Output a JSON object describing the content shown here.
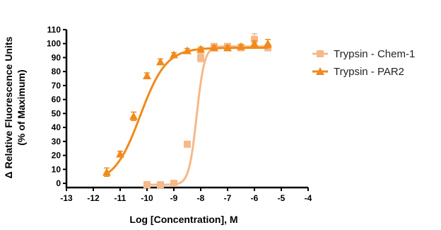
{
  "chart_data": {
    "type": "line",
    "xlabel": "Log [Concentration], M",
    "ylabel_line1": "Δ Relative Fluorescence Units",
    "ylabel_line2": "(% of Maximum)",
    "xlim": [
      -13,
      -4
    ],
    "ylim": [
      -3,
      115
    ],
    "x_ticks": [
      -13,
      -12,
      -11,
      -10,
      -9,
      -8,
      -7,
      -6,
      -5,
      -4
    ],
    "x_tick_labels": [
      "-13",
      "-12",
      "-11",
      "-10",
      "-9",
      "-8",
      "-7",
      "-6",
      "-5",
      "-4"
    ],
    "y_ticks": [
      0,
      10,
      20,
      30,
      40,
      50,
      60,
      70,
      80,
      90,
      100,
      110
    ],
    "y_tick_labels": [
      "0",
      "10",
      "20",
      "30",
      "40",
      "50",
      "60",
      "70",
      "80",
      "90",
      "100",
      "110"
    ],
    "grid": false,
    "legend_position": "right",
    "series": [
      {
        "name": "Trypsin - Chem-1",
        "color": "#f5b98a",
        "marker": "square",
        "x": [
          -10.0,
          -9.5,
          -9.0,
          -8.5,
          -8.0,
          -7.5,
          -7.0,
          -6.5,
          -6.0,
          -5.5
        ],
        "y": [
          -1,
          -1,
          0,
          28,
          90,
          98,
          98,
          97,
          103,
          97
        ],
        "err": [
          1.5,
          1.5,
          1.5,
          2,
          3,
          1.5,
          1.5,
          2,
          4,
          2
        ],
        "fit": {
          "bottom": -1,
          "top": 98,
          "log_ec50": -8.15,
          "hill": 3.0
        }
      },
      {
        "name": "Trypsin - PAR2",
        "color": "#f08a1c",
        "marker": "triangle",
        "x": [
          -11.5,
          -11.0,
          -10.5,
          -10.0,
          -9.5,
          -9.0,
          -8.5,
          -8.0,
          -7.5,
          -7.0,
          -6.5,
          -6.0,
          -5.5
        ],
        "y": [
          8,
          21,
          48,
          77,
          87,
          92,
          95,
          96,
          97,
          97,
          98,
          100,
          100
        ],
        "err": [
          3,
          2,
          3,
          2,
          2,
          1.5,
          1.5,
          1.5,
          1.5,
          1.5,
          1.5,
          2,
          3
        ],
        "fit": {
          "bottom": 0,
          "top": 97,
          "log_ec50": -10.25,
          "hill": 0.9
        }
      }
    ]
  }
}
